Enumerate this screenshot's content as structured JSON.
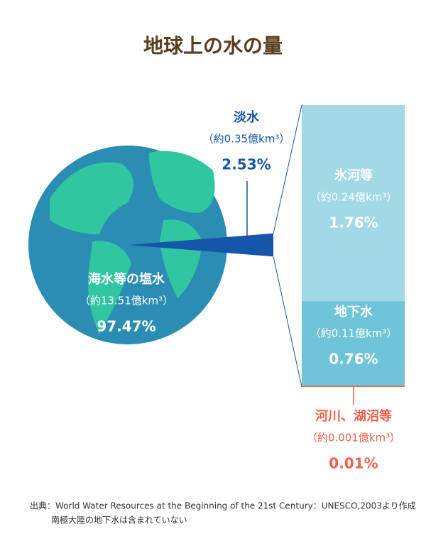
{
  "chart_data": [
    {
      "type": "pie",
      "title": "地球上の水の量",
      "categories": [
        "海水等の塩水",
        "淡水"
      ],
      "sublabels": [
        "（約13.51億km³）",
        "（約0.35億km³）"
      ],
      "values": [
        97.47,
        2.53
      ],
      "value_labels": [
        "97.47%",
        "2.53%"
      ],
      "colors": [
        "#2b8db4",
        "#1656a8"
      ]
    },
    {
      "type": "bar",
      "categories": [
        "氷河等",
        "地下水",
        "河川、湖沼等"
      ],
      "sublabels": [
        "（約0.24億km³）",
        "（約0.11億km³）",
        "（約0.001億km³）"
      ],
      "values": [
        1.76,
        0.76,
        0.01
      ],
      "value_labels": [
        "1.76%",
        "0.76%",
        "0.01%"
      ],
      "colors": [
        "#a2d9e7",
        "#6fc4d9",
        "#f1604b"
      ]
    }
  ],
  "source": [
    "出典：World Water Resources at the Beginning of the 21st Century：UNESCO,2003より作成",
    "南極大陸の地下水は含まれていない"
  ]
}
